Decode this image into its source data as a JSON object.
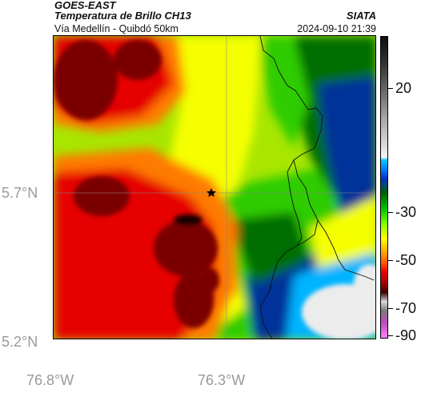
{
  "header": {
    "satellite": "GOES-EAST",
    "product": "Temperatura de Brillo CH13",
    "source": "SIATA",
    "subtitle": "Vía Medellín - Quibdó 50km",
    "datetime": "2024-09-10 21:39"
  },
  "axes": {
    "lat_labels": [
      "5.7°N",
      "5.2°N"
    ],
    "lon_labels": [
      "76.8°W",
      "76.3°W"
    ]
  },
  "colorbar": {
    "labels": [
      "20",
      "-30",
      "-50",
      "-70",
      "-90"
    ],
    "colors": [
      "#0d0d0d",
      "#a5a5a5",
      "#f5f5f5",
      "#00c8ff",
      "#0033cc",
      "#00bf00",
      "#ffff00",
      "#ff5a00",
      "#ee0000",
      "#3d0000",
      "#d9d9d9",
      "#c04ac0"
    ]
  },
  "map": {
    "marker_icon": "star-icon",
    "palette": {
      "background": "#a8e600",
      "warm_yellow": "#f5ff00",
      "green": "#2ecc00",
      "dark_green": "#006e00",
      "blue": "#003399",
      "cyan": "#00b4ff",
      "white_cloud": "#ececec",
      "orange": "#ff7a00",
      "red": "#e60000",
      "dark_red": "#7a0000",
      "black_core": "#140000"
    }
  }
}
